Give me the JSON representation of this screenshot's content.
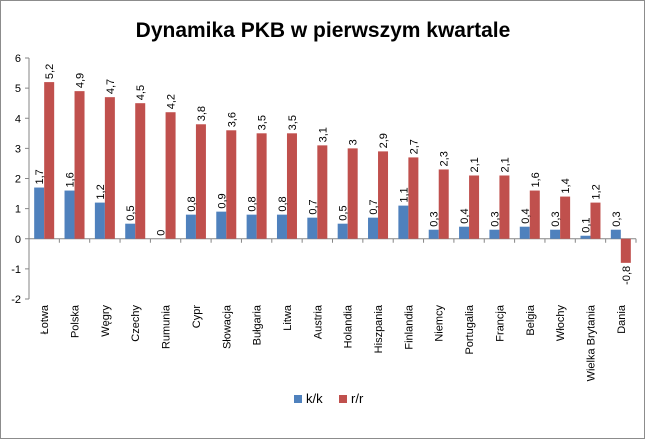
{
  "chart_data": {
    "type": "bar",
    "title": "Dynamika PKB w pierwszym kwartale",
    "xlabel": "",
    "ylabel": "",
    "ylim": [
      -2,
      6
    ],
    "yticks": [
      -2,
      -1,
      0,
      1,
      2,
      3,
      4,
      5,
      6
    ],
    "grid": false,
    "legend_position": "bottom",
    "categories": [
      "Łotwa",
      "Polska",
      "Węgry",
      "Czechy",
      "Rumunia",
      "Cypr",
      "Słowacja",
      "Bułgaria",
      "Litwa",
      "Austria",
      "Holandia",
      "Hiszpania",
      "Finlandia",
      "Niemcy",
      "Portugalia",
      "Francja",
      "Belgia",
      "Włochy",
      "Wielka Brytania",
      "Dania"
    ],
    "series": [
      {
        "name": "k/k",
        "color": "#4f81bd",
        "values": [
          1.7,
          1.6,
          1.2,
          0.5,
          0,
          0.8,
          0.9,
          0.8,
          0.8,
          0.7,
          0.5,
          0.7,
          1.1,
          0.3,
          0.4,
          0.3,
          0.4,
          0.3,
          0.1,
          0.3
        ],
        "labels": [
          "1,7",
          "1,6",
          "1,2",
          "0,5",
          "0",
          "0,8",
          "0,9",
          "0,8",
          "0,8",
          "0,7",
          "0,5",
          "0,7",
          "1,1",
          "0,3",
          "0,4",
          "0,3",
          "0,4",
          "0,3",
          "0,1",
          "0,3"
        ]
      },
      {
        "name": "r/r",
        "color": "#c0504d",
        "values": [
          5.2,
          4.9,
          4.7,
          4.5,
          4.2,
          3.8,
          3.6,
          3.5,
          3.5,
          3.1,
          3,
          2.9,
          2.7,
          2.3,
          2.1,
          2.1,
          1.6,
          1.4,
          1.2,
          -0.8
        ],
        "labels": [
          "5,2",
          "4,9",
          "4,7",
          "4,5",
          "4,2",
          "3,8",
          "3,6",
          "3,5",
          "3,5",
          "3,1",
          "3",
          "2,9",
          "2,7",
          "2,3",
          "2,1",
          "2,1",
          "1,6",
          "1,4",
          "1,2",
          "-0,8"
        ]
      }
    ]
  }
}
